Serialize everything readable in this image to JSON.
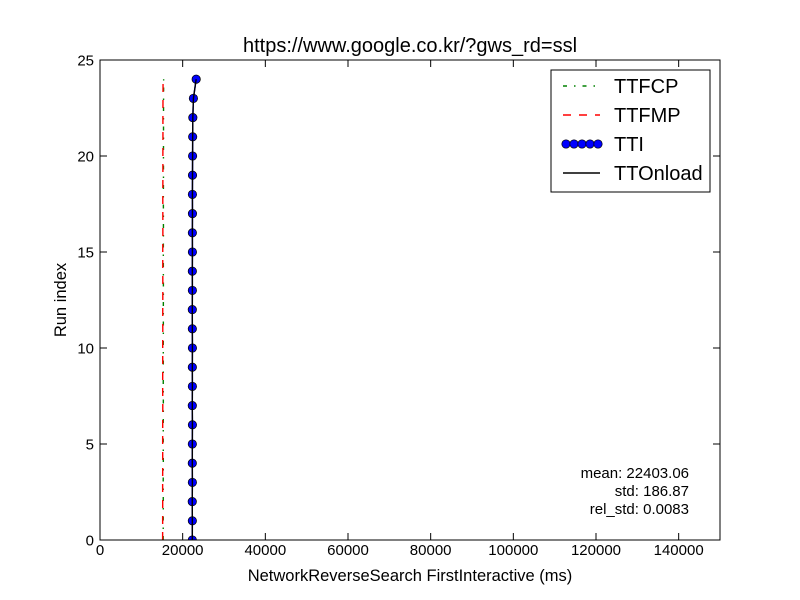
{
  "chart_data": {
    "type": "line",
    "title": "https://www.google.co.kr/?gws_rd=ssl",
    "xlabel": "NetworkReverseSearch FirstInteractive (ms)",
    "ylabel": "Run index",
    "xlim": [
      0,
      150000
    ],
    "ylim": [
      0,
      25
    ],
    "xticks": [
      0,
      20000,
      40000,
      60000,
      80000,
      100000,
      120000,
      140000
    ],
    "xtick_labels": [
      "0",
      "20000",
      "40000",
      "60000",
      "80000",
      "100000",
      "120000",
      "140000"
    ],
    "yticks": [
      0,
      5,
      10,
      15,
      20,
      25
    ],
    "ytick_labels": [
      "0",
      "5",
      "10",
      "15",
      "20",
      "25"
    ],
    "grid": false,
    "legend_position": "top-right",
    "y": [
      0,
      1,
      2,
      3,
      4,
      5,
      6,
      7,
      8,
      9,
      10,
      11,
      12,
      13,
      14,
      15,
      16,
      17,
      18,
      19,
      20,
      21,
      22,
      23,
      24
    ],
    "series": [
      {
        "name": "TTFCP",
        "color": "#008000",
        "line_style": "dash-dot",
        "marker": "none",
        "x": [
          15290,
          15300,
          15310,
          15290,
          15320,
          15300,
          15310,
          15330,
          15300,
          15320,
          15310,
          15330,
          15320,
          15340,
          15330,
          15320,
          15350,
          15340,
          15330,
          15360,
          15350,
          15370,
          15360,
          15380,
          15400
        ]
      },
      {
        "name": "TTFMP",
        "color": "#ff0000",
        "line_style": "dashed",
        "marker": "none",
        "x": [
          15150,
          15160,
          15170,
          15150,
          15180,
          15160,
          15170,
          15190,
          15160,
          15180,
          15170,
          15190,
          15180,
          15200,
          15190,
          15180,
          15210,
          15200,
          15190,
          15220,
          15210,
          15230,
          15220,
          15240,
          15260
        ]
      },
      {
        "name": "TTI",
        "color": "#0000ff",
        "line_style": "solid",
        "marker": "circle",
        "x": [
          22330,
          22340,
          22320,
          22350,
          22330,
          22340,
          22360,
          22330,
          22350,
          22340,
          22360,
          22340,
          22330,
          22350,
          22340,
          22360,
          22350,
          22370,
          22360,
          22380,
          22400,
          22420,
          22460,
          22600,
          23270
        ]
      },
      {
        "name": "TTOnload",
        "color": "#000000",
        "line_style": "solid",
        "marker": "none",
        "x": [
          22330,
          22340,
          22320,
          22350,
          22330,
          22340,
          22360,
          22330,
          22350,
          22340,
          22360,
          22340,
          22330,
          22350,
          22340,
          22360,
          22350,
          22370,
          22360,
          22380,
          22400,
          22420,
          22460,
          22600,
          23270
        ]
      }
    ],
    "annotation_position": "bottom-right",
    "annotations": [
      "mean: 22403.06",
      "std: 186.87",
      "rel_std: 0.0083"
    ]
  }
}
